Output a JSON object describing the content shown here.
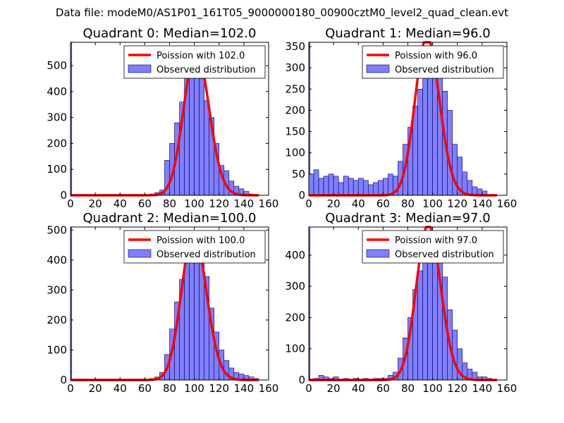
{
  "suptitle": "Data file: modeM0/AS1P01_161T05_9000000180_00900cztM0_level2_quad_clean.evt",
  "colors": {
    "bar_fill": "#7f7fff",
    "bar_edge": "#00005a",
    "curve": "#ff0000",
    "curve_highlight": "#ff8c8c"
  },
  "chart_data": [
    {
      "type": "bar",
      "title": "Quadrant 0: Median=102.0",
      "median": 102.0,
      "xlim": [
        0,
        160
      ],
      "ylim": [
        0,
        590
      ],
      "xticks": [
        0,
        20,
        40,
        60,
        80,
        100,
        120,
        140,
        160
      ],
      "yticks": [
        0,
        100,
        200,
        300,
        400,
        500
      ],
      "legend": {
        "placement": "top-right",
        "curve_label": "Poission with 102.0",
        "bar_label": "Observed distribution"
      },
      "bin_width": 4,
      "bins": [
        {
          "x": 0,
          "y": 590,
          "w": 1
        },
        {
          "x": 64,
          "y": 5
        },
        {
          "x": 68,
          "y": 10
        },
        {
          "x": 72,
          "y": 20
        },
        {
          "x": 76,
          "y": 135
        },
        {
          "x": 80,
          "y": 200
        },
        {
          "x": 84,
          "y": 280
        },
        {
          "x": 88,
          "y": 360
        },
        {
          "x": 92,
          "y": 460
        },
        {
          "x": 96,
          "y": 520
        },
        {
          "x": 100,
          "y": 510
        },
        {
          "x": 104,
          "y": 450
        },
        {
          "x": 108,
          "y": 365
        },
        {
          "x": 112,
          "y": 300
        },
        {
          "x": 116,
          "y": 200
        },
        {
          "x": 120,
          "y": 115
        },
        {
          "x": 124,
          "y": 95
        },
        {
          "x": 128,
          "y": 55
        },
        {
          "x": 132,
          "y": 35
        },
        {
          "x": 136,
          "y": 25
        },
        {
          "x": 140,
          "y": 15
        },
        {
          "x": 144,
          "y": 5
        }
      ]
    },
    {
      "type": "bar",
      "title": "Quadrant 1: Median=96.0",
      "median": 96.0,
      "xlim": [
        0,
        160
      ],
      "ylim": [
        0,
        360
      ],
      "xticks": [
        0,
        20,
        40,
        60,
        80,
        100,
        120,
        140,
        160
      ],
      "yticks": [
        0,
        50,
        100,
        150,
        200,
        250,
        300,
        350
      ],
      "legend": {
        "placement": "top-right",
        "curve_label": "Poission with 96.0",
        "bar_label": "Observed distribution"
      },
      "bin_width": 4,
      "bins": [
        {
          "x": 0,
          "y": 360,
          "w": 1
        },
        {
          "x": 0,
          "y": 50
        },
        {
          "x": 4,
          "y": 60
        },
        {
          "x": 8,
          "y": 40
        },
        {
          "x": 12,
          "y": 45
        },
        {
          "x": 16,
          "y": 50
        },
        {
          "x": 20,
          "y": 45
        },
        {
          "x": 24,
          "y": 30
        },
        {
          "x": 28,
          "y": 45
        },
        {
          "x": 32,
          "y": 40
        },
        {
          "x": 36,
          "y": 35
        },
        {
          "x": 40,
          "y": 40
        },
        {
          "x": 44,
          "y": 35
        },
        {
          "x": 48,
          "y": 25
        },
        {
          "x": 52,
          "y": 30
        },
        {
          "x": 56,
          "y": 35
        },
        {
          "x": 60,
          "y": 40
        },
        {
          "x": 64,
          "y": 50
        },
        {
          "x": 68,
          "y": 45
        },
        {
          "x": 72,
          "y": 80
        },
        {
          "x": 76,
          "y": 120
        },
        {
          "x": 80,
          "y": 160
        },
        {
          "x": 84,
          "y": 210
        },
        {
          "x": 88,
          "y": 250
        },
        {
          "x": 92,
          "y": 300
        },
        {
          "x": 96,
          "y": 345
        },
        {
          "x": 100,
          "y": 320
        },
        {
          "x": 104,
          "y": 300
        },
        {
          "x": 108,
          "y": 245
        },
        {
          "x": 112,
          "y": 200
        },
        {
          "x": 116,
          "y": 120
        },
        {
          "x": 120,
          "y": 90
        },
        {
          "x": 124,
          "y": 55
        },
        {
          "x": 128,
          "y": 35
        },
        {
          "x": 132,
          "y": 20
        },
        {
          "x": 136,
          "y": 15
        },
        {
          "x": 140,
          "y": 10
        }
      ]
    },
    {
      "type": "bar",
      "title": "Quadrant 2: Median=100.0",
      "median": 100.0,
      "xlim": [
        0,
        160
      ],
      "ylim": [
        0,
        510
      ],
      "xticks": [
        0,
        20,
        40,
        60,
        80,
        100,
        120,
        140,
        160
      ],
      "yticks": [
        0,
        100,
        200,
        300,
        400,
        500
      ],
      "legend": {
        "placement": "top-right",
        "curve_label": "Poission with 100.0",
        "bar_label": "Observed distribution"
      },
      "bin_width": 4,
      "bins": [
        {
          "x": 0,
          "y": 510,
          "w": 1
        },
        {
          "x": 64,
          "y": 5
        },
        {
          "x": 68,
          "y": 10
        },
        {
          "x": 72,
          "y": 25
        },
        {
          "x": 76,
          "y": 85
        },
        {
          "x": 80,
          "y": 170
        },
        {
          "x": 84,
          "y": 260
        },
        {
          "x": 88,
          "y": 335
        },
        {
          "x": 92,
          "y": 405
        },
        {
          "x": 96,
          "y": 455
        },
        {
          "x": 100,
          "y": 450
        },
        {
          "x": 104,
          "y": 395
        },
        {
          "x": 108,
          "y": 345
        },
        {
          "x": 112,
          "y": 240
        },
        {
          "x": 116,
          "y": 160
        },
        {
          "x": 120,
          "y": 100
        },
        {
          "x": 124,
          "y": 65
        },
        {
          "x": 128,
          "y": 40
        },
        {
          "x": 132,
          "y": 25
        },
        {
          "x": 136,
          "y": 20
        },
        {
          "x": 140,
          "y": 15
        },
        {
          "x": 144,
          "y": 10
        },
        {
          "x": 148,
          "y": 5
        }
      ]
    },
    {
      "type": "bar",
      "title": "Quadrant 3: Median=97.0",
      "median": 97.0,
      "xlim": [
        0,
        160
      ],
      "ylim": [
        0,
        490
      ],
      "xticks": [
        0,
        20,
        40,
        60,
        80,
        100,
        120,
        140,
        160
      ],
      "yticks": [
        0,
        100,
        200,
        300,
        400
      ],
      "legend": {
        "placement": "top-right",
        "curve_label": "Poission with 97.0",
        "bar_label": "Observed distribution"
      },
      "bin_width": 4,
      "bins": [
        {
          "x": 0,
          "y": 490,
          "w": 1
        },
        {
          "x": 4,
          "y": 5
        },
        {
          "x": 8,
          "y": 15
        },
        {
          "x": 12,
          "y": 10
        },
        {
          "x": 16,
          "y": 5
        },
        {
          "x": 20,
          "y": 10
        },
        {
          "x": 28,
          "y": 5
        },
        {
          "x": 36,
          "y": 5
        },
        {
          "x": 44,
          "y": 5
        },
        {
          "x": 52,
          "y": 5
        },
        {
          "x": 56,
          "y": 5
        },
        {
          "x": 60,
          "y": 5
        },
        {
          "x": 64,
          "y": 15
        },
        {
          "x": 68,
          "y": 25
        },
        {
          "x": 72,
          "y": 70
        },
        {
          "x": 76,
          "y": 135
        },
        {
          "x": 80,
          "y": 200
        },
        {
          "x": 84,
          "y": 290
        },
        {
          "x": 88,
          "y": 350
        },
        {
          "x": 92,
          "y": 410
        },
        {
          "x": 96,
          "y": 460
        },
        {
          "x": 100,
          "y": 455
        },
        {
          "x": 104,
          "y": 400
        },
        {
          "x": 108,
          "y": 330
        },
        {
          "x": 112,
          "y": 225
        },
        {
          "x": 116,
          "y": 160
        },
        {
          "x": 120,
          "y": 100
        },
        {
          "x": 124,
          "y": 55
        },
        {
          "x": 128,
          "y": 35
        },
        {
          "x": 132,
          "y": 25
        },
        {
          "x": 136,
          "y": 10
        },
        {
          "x": 140,
          "y": 10
        },
        {
          "x": 144,
          "y": 5
        }
      ]
    }
  ]
}
